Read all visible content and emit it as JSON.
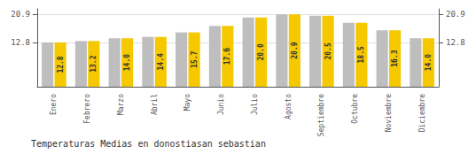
{
  "chart_data": {
    "type": "bar",
    "title": "Temperaturas Medias en donostiasan sebastian",
    "categories": [
      "Enero",
      "Febrero",
      "Marzo",
      "Abril",
      "Mayo",
      "Junio",
      "Julio",
      "Agosto",
      "Septiembre",
      "Octubre",
      "Noviembre",
      "Diciembre"
    ],
    "series": [
      {
        "color": "#BEBEBE",
        "values": [
          12.8,
          13.2,
          14.0,
          14.4,
          15.7,
          17.6,
          20.0,
          20.9,
          20.5,
          18.5,
          16.3,
          14.0
        ]
      },
      {
        "color": "#F5C800",
        "values": [
          12.8,
          13.2,
          14.0,
          14.4,
          15.7,
          17.6,
          20.0,
          20.9,
          20.5,
          18.5,
          16.3,
          14.0
        ],
        "data_labels": true,
        "value_labels": [
          "12.8",
          "13.2",
          "14.0",
          "14.4",
          "15.7",
          "17.6",
          "20.0",
          "20.9",
          "20.5",
          "18.5",
          "16.3",
          "14.0"
        ]
      }
    ],
    "ylim": [
      0,
      22.5
    ],
    "yticks": [
      12.8,
      20.9
    ],
    "y2lim": [
      0,
      22.5
    ],
    "y2ticks": [
      12.8,
      20.9
    ],
    "grid": true
  }
}
